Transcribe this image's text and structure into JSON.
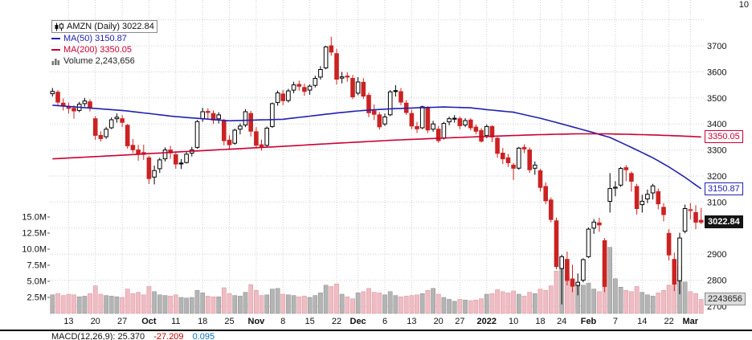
{
  "window": {
    "top_right_partial": "10"
  },
  "legend": {
    "symbol": "AMZN (Daily) 3022.84",
    "ma50": "MA(50) 3150.87",
    "ma200": "MA(200) 3350.05",
    "volume": "Volume 2,243,656"
  },
  "price_tags": {
    "ma200": "3350.05",
    "ma50": "3150.87",
    "last": "3022.84",
    "volume": "2243656"
  },
  "footer": {
    "macd_label": "MACD(12,26,9): 25.370",
    "macd_signal": "-27.209",
    "macd_hist": "0.095"
  },
  "colors": {
    "up": "#000000",
    "down": "#cc2222",
    "ma50": "#2020b0",
    "ma200": "#cc0033",
    "vol_up": "#b4b4b4",
    "vol_up_border": "#8a8a8a",
    "vol_down": "#f0bcc4",
    "vol_down_border": "#d89098",
    "grid": "#cfcfcf"
  },
  "chart_data": {
    "type": "candlestick",
    "symbol": "AMZN",
    "timeframe": "Daily",
    "last_close": 3022.84,
    "ma50_value": 3150.87,
    "ma200_value": 3350.05,
    "last_volume": 2243656,
    "price_axis": {
      "visible_ticks": [
        3700,
        3600,
        3500,
        3400,
        3300,
        3200,
        3100,
        2900,
        2800,
        2700
      ],
      "grid_ticks": [
        2700,
        2800,
        2900,
        3000,
        3100,
        3200,
        3300,
        3400,
        3500,
        3600,
        3700,
        3800
      ]
    },
    "volume_axis": {
      "ticks": [
        {
          "v": 15,
          "label": "15.0M"
        },
        {
          "v": 12.5,
          "label": "12.5M"
        },
        {
          "v": 10,
          "label": "10.0M"
        },
        {
          "v": 7.5,
          "label": "7.5M"
        },
        {
          "v": 5,
          "label": "5.0M"
        },
        {
          "v": 2.5,
          "label": "2.5M"
        }
      ]
    },
    "x_labels": [
      {
        "i": 3,
        "label": "13",
        "bold": false
      },
      {
        "i": 8,
        "label": "20",
        "bold": false
      },
      {
        "i": 13,
        "label": "27",
        "bold": false
      },
      {
        "i": 18,
        "label": "Oct",
        "bold": true
      },
      {
        "i": 23,
        "label": "11",
        "bold": false
      },
      {
        "i": 28,
        "label": "18",
        "bold": false
      },
      {
        "i": 33,
        "label": "25",
        "bold": false
      },
      {
        "i": 38,
        "label": "Nov",
        "bold": true
      },
      {
        "i": 43,
        "label": "8",
        "bold": false
      },
      {
        "i": 48,
        "label": "15",
        "bold": false
      },
      {
        "i": 53,
        "label": "22",
        "bold": false
      },
      {
        "i": 57,
        "label": "Dec",
        "bold": true
      },
      {
        "i": 62,
        "label": "6",
        "bold": false
      },
      {
        "i": 67,
        "label": "13",
        "bold": false
      },
      {
        "i": 72,
        "label": "20",
        "bold": false
      },
      {
        "i": 76,
        "label": "27",
        "bold": false
      },
      {
        "i": 81,
        "label": "2022",
        "bold": true
      },
      {
        "i": 86,
        "label": "10",
        "bold": false
      },
      {
        "i": 91,
        "label": "18",
        "bold": false
      },
      {
        "i": 95,
        "label": "24",
        "bold": false
      },
      {
        "i": 100,
        "label": "Feb",
        "bold": true
      },
      {
        "i": 105,
        "label": "7",
        "bold": false
      },
      {
        "i": 110,
        "label": "14",
        "bold": false
      },
      {
        "i": 115,
        "label": "22",
        "bold": false
      },
      {
        "i": 119,
        "label": "Mar",
        "bold": true
      }
    ],
    "candles": [
      [
        3516,
        3538,
        3505,
        3525,
        2.9
      ],
      [
        3522,
        3530,
        3468,
        3484,
        3.1
      ],
      [
        3480,
        3498,
        3452,
        3470,
        2.8
      ],
      [
        3468,
        3482,
        3440,
        3460,
        3.0
      ],
      [
        3460,
        3472,
        3420,
        3450,
        2.9
      ],
      [
        3452,
        3485,
        3445,
        3476,
        2.6
      ],
      [
        3478,
        3500,
        3467,
        3488,
        2.7
      ],
      [
        3485,
        3495,
        3448,
        3463,
        3.1
      ],
      [
        3420,
        3430,
        3339,
        3356,
        4.3
      ],
      [
        3356,
        3372,
        3332,
        3344,
        3.0
      ],
      [
        3351,
        3389,
        3343,
        3380,
        2.8
      ],
      [
        3385,
        3425,
        3380,
        3416,
        2.7
      ],
      [
        3420,
        3440,
        3405,
        3426,
        2.6
      ],
      [
        3420,
        3434,
        3388,
        3406,
        2.5
      ],
      [
        3395,
        3400,
        3305,
        3316,
        3.8
      ],
      [
        3318,
        3342,
        3288,
        3301,
        3.1
      ],
      [
        3300,
        3319,
        3259,
        3285,
        3.3
      ],
      [
        3290,
        3320,
        3262,
        3283,
        2.9
      ],
      [
        3270,
        3278,
        3170,
        3190,
        4.2
      ],
      [
        3196,
        3240,
        3168,
        3221,
        3.4
      ],
      [
        3228,
        3270,
        3212,
        3262,
        2.9
      ],
      [
        3266,
        3310,
        3256,
        3300,
        2.8
      ],
      [
        3300,
        3316,
        3266,
        3289,
        2.7
      ],
      [
        3282,
        3295,
        3228,
        3246,
        2.9
      ],
      [
        3250,
        3265,
        3227,
        3247,
        2.5
      ],
      [
        3252,
        3293,
        3248,
        3284,
        2.4
      ],
      [
        3288,
        3312,
        3275,
        3300,
        2.5
      ],
      [
        3310,
        3415,
        3305,
        3409,
        3.6
      ],
      [
        3420,
        3462,
        3408,
        3447,
        3.2
      ],
      [
        3448,
        3460,
        3420,
        3444,
        2.7
      ],
      [
        3440,
        3452,
        3400,
        3415,
        2.6
      ],
      [
        3420,
        3445,
        3402,
        3435,
        2.6
      ],
      [
        3410,
        3420,
        3318,
        3336,
        4.0
      ],
      [
        3338,
        3356,
        3300,
        3320,
        3.1
      ],
      [
        3326,
        3382,
        3320,
        3376,
        2.8
      ],
      [
        3380,
        3402,
        3360,
        3392,
        2.7
      ],
      [
        3396,
        3457,
        3388,
        3447,
        3.3
      ],
      [
        3440,
        3450,
        3352,
        3372,
        4.5
      ],
      [
        3370,
        3388,
        3306,
        3318,
        3.6
      ],
      [
        3320,
        3340,
        3298,
        3313,
        2.8
      ],
      [
        3318,
        3390,
        3312,
        3384,
        2.9
      ],
      [
        3390,
        3482,
        3385,
        3478,
        3.8
      ],
      [
        3482,
        3528,
        3470,
        3519,
        3.9
      ],
      [
        3515,
        3530,
        3472,
        3489,
        3.0
      ],
      [
        3490,
        3535,
        3482,
        3527,
        2.9
      ],
      [
        3530,
        3562,
        3518,
        3550,
        2.8
      ],
      [
        3552,
        3566,
        3528,
        3545,
        2.6
      ],
      [
        3540,
        3555,
        3508,
        3525,
        2.7
      ],
      [
        3530,
        3552,
        3512,
        3545,
        2.5
      ],
      [
        3548,
        3585,
        3540,
        3575,
        2.8
      ],
      [
        3580,
        3622,
        3570,
        3609,
        3.2
      ],
      [
        3615,
        3700,
        3610,
        3696,
        4.4
      ],
      [
        3700,
        3735,
        3662,
        3676,
        4.2
      ],
      [
        3670,
        3688,
        3552,
        3572,
        4.6
      ],
      [
        3576,
        3600,
        3556,
        3581,
        3.0
      ],
      [
        3584,
        3598,
        3562,
        3580,
        2.6
      ],
      [
        3575,
        3588,
        3495,
        3504,
        2.3
      ],
      [
        3518,
        3580,
        3510,
        3561,
        3.2
      ],
      [
        3560,
        3576,
        3496,
        3507,
        3.4
      ],
      [
        3510,
        3520,
        3426,
        3443,
        3.9
      ],
      [
        3450,
        3475,
        3415,
        3437,
        3.3
      ],
      [
        3435,
        3445,
        3378,
        3389,
        3.2
      ],
      [
        3400,
        3440,
        3392,
        3427,
        2.9
      ],
      [
        3435,
        3530,
        3430,
        3523,
        3.4
      ],
      [
        3528,
        3549,
        3505,
        3527,
        2.8
      ],
      [
        3524,
        3538,
        3472,
        3484,
        2.6
      ],
      [
        3480,
        3492,
        3435,
        3444,
        2.7
      ],
      [
        3440,
        3455,
        3380,
        3392,
        2.8
      ],
      [
        3390,
        3408,
        3365,
        3381,
        2.9
      ],
      [
        3385,
        3470,
        3380,
        3466,
        3.1
      ],
      [
        3460,
        3468,
        3365,
        3377,
        3.6
      ],
      [
        3380,
        3412,
        3370,
        3400,
        3.9
      ],
      [
        3380,
        3392,
        3328,
        3336,
        3.0
      ],
      [
        3345,
        3408,
        3340,
        3402,
        2.5
      ],
      [
        3408,
        3428,
        3395,
        3420,
        2.2
      ],
      [
        3422,
        3434,
        3405,
        3421,
        1.9
      ],
      [
        3420,
        3428,
        3380,
        3393,
        2.2
      ],
      [
        3396,
        3422,
        3388,
        3413,
        2.1
      ],
      [
        3415,
        3422,
        3375,
        3385,
        2.0
      ],
      [
        3388,
        3398,
        3360,
        3372,
        2.1
      ],
      [
        3375,
        3384,
        3328,
        3334,
        2.3
      ],
      [
        3355,
        3398,
        3345,
        3390,
        3.0
      ],
      [
        3390,
        3395,
        3330,
        3350,
        3.1
      ],
      [
        3345,
        3350,
        3270,
        3287,
        3.7
      ],
      [
        3288,
        3308,
        3246,
        3266,
        3.4
      ],
      [
        3270,
        3285,
        3235,
        3251,
        3.2
      ],
      [
        3242,
        3250,
        3185,
        3230,
        3.5
      ],
      [
        3230,
        3312,
        3224,
        3307,
        3.0
      ],
      [
        3310,
        3322,
        3288,
        3304,
        2.7
      ],
      [
        3300,
        3310,
        3212,
        3224,
        3.3
      ],
      [
        3230,
        3256,
        3205,
        3242,
        3.1
      ],
      [
        3220,
        3228,
        3140,
        3156,
        3.8
      ],
      [
        3160,
        3176,
        3092,
        3105,
        3.6
      ],
      [
        3108,
        3118,
        3022,
        3033,
        4.3
      ],
      [
        3028,
        3040,
        2842,
        2852,
        6.6
      ],
      [
        2845,
        2898,
        2707,
        2890,
        8.8
      ],
      [
        2880,
        2910,
        2780,
        2799,
        5.9
      ],
      [
        2805,
        2860,
        2754,
        2777,
        5.2
      ],
      [
        2780,
        2826,
        2742,
        2792,
        4.6
      ],
      [
        2800,
        2884,
        2792,
        2879,
        4.4
      ],
      [
        2890,
        3002,
        2886,
        2996,
        4.7
      ],
      [
        3000,
        3035,
        2978,
        3023,
        3.8
      ],
      [
        3020,
        3040,
        2986,
        3012,
        3.4
      ],
      [
        2952,
        2962,
        2754,
        2776,
        9.1
      ],
      [
        3103,
        3211,
        3060,
        3152,
        10.3
      ],
      [
        3156,
        3180,
        3122,
        3157,
        5.4
      ],
      [
        3165,
        3235,
        3158,
        3229,
        4.1
      ],
      [
        3232,
        3242,
        3180,
        3224,
        3.6
      ],
      [
        3210,
        3218,
        3140,
        3180,
        3.4
      ],
      [
        3160,
        3170,
        3052,
        3075,
        4.2
      ],
      [
        3090,
        3128,
        3060,
        3103,
        3.3
      ],
      [
        3112,
        3148,
        3096,
        3130,
        2.9
      ],
      [
        3135,
        3170,
        3110,
        3162,
        2.7
      ],
      [
        3140,
        3152,
        3072,
        3093,
        3.2
      ],
      [
        3080,
        3096,
        3026,
        3052,
        3.6
      ],
      [
        2980,
        2996,
        2876,
        2897,
        4.4
      ],
      [
        2880,
        2906,
        2758,
        2785,
        5.3
      ],
      [
        2798,
        2982,
        2746,
        2962,
        7.4
      ],
      [
        2988,
        3090,
        2980,
        3075,
        4.9
      ],
      [
        3070,
        3096,
        3034,
        3071,
        3.4
      ],
      [
        3060,
        3088,
        2996,
        3023,
        3.1
      ],
      [
        3030,
        3078,
        3015,
        3022.84,
        2.2
      ]
    ],
    "ma50_points": [
      [
        0,
        3472
      ],
      [
        13,
        3452
      ],
      [
        23,
        3428
      ],
      [
        33,
        3412
      ],
      [
        43,
        3418
      ],
      [
        53,
        3442
      ],
      [
        58,
        3452
      ],
      [
        63,
        3458
      ],
      [
        68,
        3462
      ],
      [
        73,
        3465
      ],
      [
        78,
        3462
      ],
      [
        81,
        3455
      ],
      [
        86,
        3445
      ],
      [
        91,
        3422
      ],
      [
        95,
        3400
      ],
      [
        100,
        3372
      ],
      [
        104,
        3348
      ],
      [
        108,
        3310
      ],
      [
        112,
        3270
      ],
      [
        115,
        3235
      ],
      [
        118,
        3195
      ],
      [
        121,
        3150.87
      ]
    ],
    "ma200_points": [
      [
        0,
        3266
      ],
      [
        13,
        3280
      ],
      [
        23,
        3292
      ],
      [
        33,
        3303
      ],
      [
        43,
        3314
      ],
      [
        53,
        3326
      ],
      [
        63,
        3337
      ],
      [
        73,
        3346
      ],
      [
        81,
        3352
      ],
      [
        88,
        3357
      ],
      [
        93,
        3360
      ],
      [
        98,
        3362
      ],
      [
        103,
        3362
      ],
      [
        108,
        3360
      ],
      [
        113,
        3357
      ],
      [
        117,
        3354
      ],
      [
        121,
        3350.05
      ]
    ]
  }
}
